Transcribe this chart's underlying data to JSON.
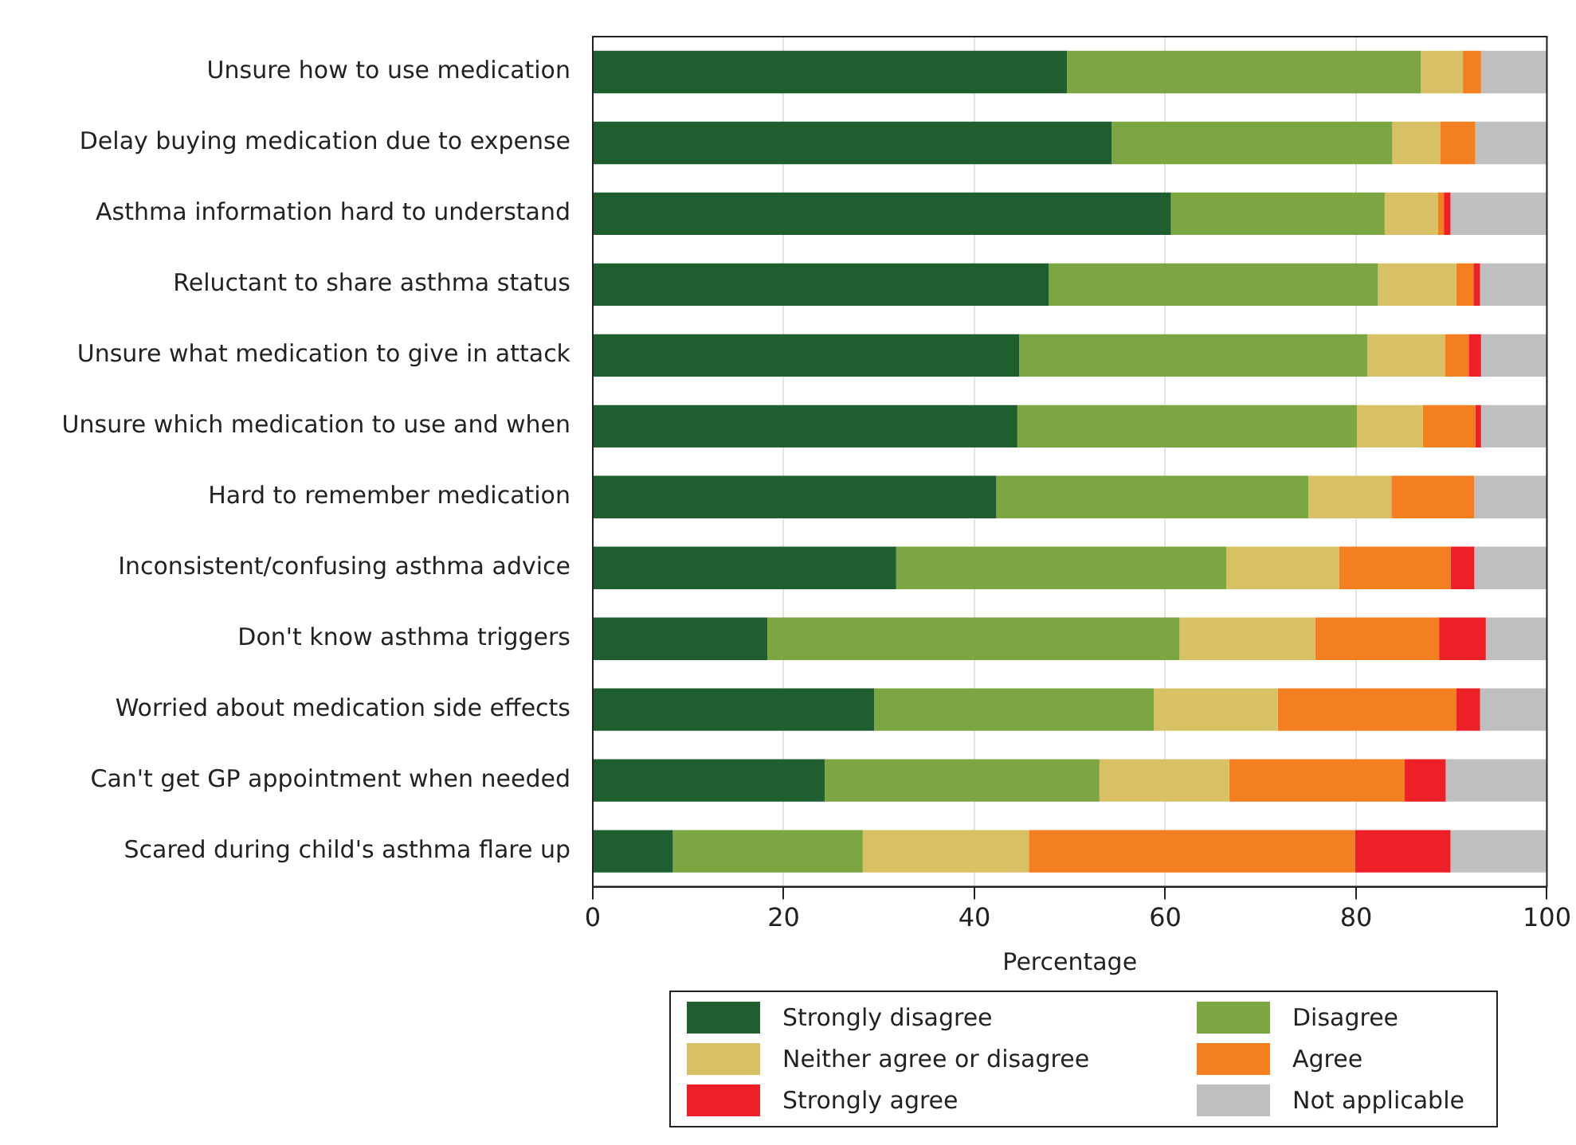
{
  "chart_data": {
    "type": "bar",
    "orientation": "horizontal",
    "stacked": true,
    "xlabel": "Percentage",
    "categories": [
      "Unsure how to use medication",
      "Delay buying medication due to expense",
      "Asthma information hard to understand",
      "Reluctant to share asthma status",
      "Unsure what medication to give in attack",
      "Unsure which medication to use and when",
      "Hard to remember medication",
      "Inconsistent/confusing asthma advice",
      "Don't know asthma triggers",
      "Worried about medication side effects",
      "Can't get GP appointment when needed",
      "Scared during child's asthma flare up"
    ],
    "series": [
      {
        "name": "Strongly disagree",
        "color": "#1f5f2f",
        "values": [
          49.7,
          54.4,
          60.6,
          47.8,
          44.7,
          44.5,
          42.3,
          31.8,
          18.3,
          29.5,
          24.3,
          8.4
        ]
      },
      {
        "name": "Disagree",
        "color": "#7ba642",
        "values": [
          37.1,
          29.4,
          22.4,
          34.5,
          36.5,
          35.6,
          32.7,
          34.6,
          43.2,
          29.3,
          28.8,
          19.9
        ]
      },
      {
        "name": "Neither agree or disagree",
        "color": "#d8c164",
        "values": [
          4.4,
          5.0,
          5.6,
          8.2,
          8.1,
          6.9,
          8.7,
          11.8,
          14.2,
          13.0,
          13.6,
          17.4
        ]
      },
      {
        "name": "Agree",
        "color": "#f47f20",
        "values": [
          1.9,
          3.7,
          0.6,
          1.8,
          2.5,
          5.5,
          8.7,
          11.7,
          13.0,
          18.7,
          18.4,
          34.2
        ]
      },
      {
        "name": "Strongly agree",
        "color": "#ee2027",
        "values": [
          0,
          0,
          0.7,
          0.7,
          1.3,
          0.6,
          0,
          2.5,
          4.9,
          2.5,
          4.3,
          10.0
        ]
      },
      {
        "name": "Not applicable",
        "color": "#bfbfbf",
        "values": [
          6.9,
          7.5,
          10.1,
          7.0,
          6.9,
          6.9,
          7.6,
          7.6,
          6.4,
          7.0,
          10.6,
          10.1
        ]
      }
    ],
    "xlim": [
      0,
      100
    ],
    "xticks": [
      0,
      20,
      40,
      60,
      80,
      100
    ],
    "grid": "x",
    "legend": "bottom"
  }
}
